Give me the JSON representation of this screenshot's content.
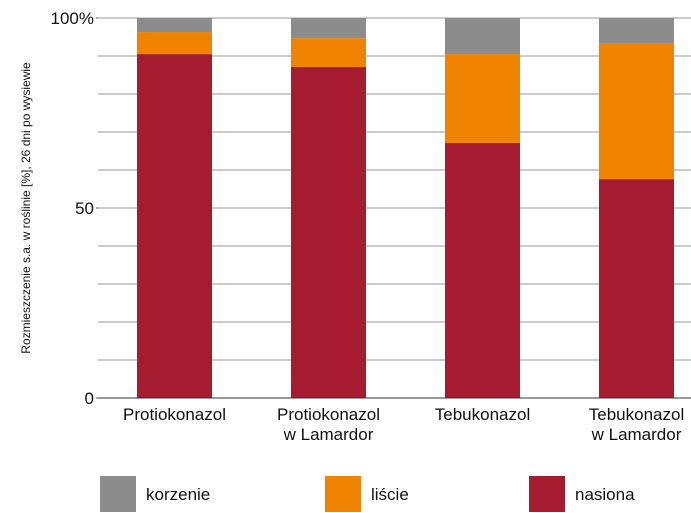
{
  "chart_data": {
    "type": "stacked_bar",
    "y_label": "Rozmieszczenie s.a. w roślinie [%], 26 dni po wysiewie",
    "categories": [
      [
        "Protiokonazol"
      ],
      [
        "Protiokonazol",
        "w Lamardor"
      ],
      [
        "Tebukonazol"
      ],
      [
        "Tebukonazol",
        "w Lamardor"
      ]
    ],
    "series": [
      {
        "name": "nasiona",
        "color": "#a51c30",
        "values": [
          90.5,
          87.1,
          67.1,
          57.6
        ]
      },
      {
        "name": "liście",
        "color": "#f08300",
        "values": [
          5.8,
          7.6,
          23.4,
          35.8
        ]
      },
      {
        "name": "korzenie",
        "color": "#8c8c8c",
        "values": [
          3.7,
          5.3,
          9.5,
          6.6
        ]
      }
    ],
    "legend_order": [
      2,
      1,
      0
    ],
    "ylim": [
      0,
      100
    ],
    "yticks": [
      0,
      50,
      {
        "value": 100,
        "label": "100%"
      }
    ],
    "ygrid": [
      0,
      10,
      20,
      30,
      40,
      50,
      60,
      70,
      80,
      90,
      100
    ],
    "grid": true
  }
}
